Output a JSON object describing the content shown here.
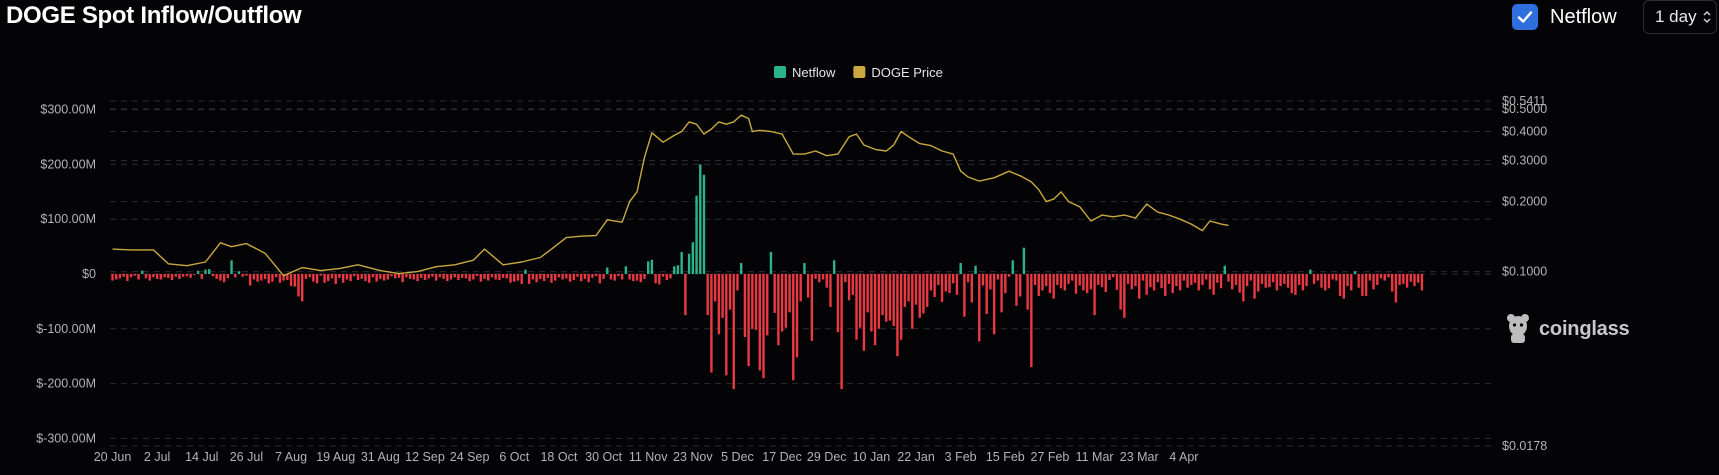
{
  "header": {
    "title": "DOGE Spot Inflow/Outflow",
    "toggle_label": "Netflow",
    "toggle_checked": true,
    "interval_value": "1 day"
  },
  "watermark": "coinglass",
  "colors": {
    "background": "#040406",
    "inflow": "#2bb38a",
    "outflow": "#ea3943",
    "price": "#c9a83f",
    "grid": "#2a2c30",
    "axis_text": "#b3b3b3",
    "checkbox": "#2f6fdd"
  },
  "chart_data": {
    "type": "bar",
    "title": "",
    "legend": {
      "position": "top-center",
      "items": [
        {
          "label": "Netflow",
          "color": "#2bb38a"
        },
        {
          "label": "DOGE Price",
          "color": "#c9a83f"
        }
      ]
    },
    "grid": true,
    "x_tick_labels": [
      "20 Jun",
      "2 Jul",
      "14 Jul",
      "26 Jul",
      "7 Aug",
      "19 Aug",
      "31 Aug",
      "12 Sep",
      "24 Sep",
      "6 Oct",
      "18 Oct",
      "30 Oct",
      "11 Nov",
      "23 Nov",
      "5 Dec",
      "17 Dec",
      "29 Dec",
      "10 Jan",
      "22 Jan",
      "3 Feb",
      "15 Feb",
      "27 Feb",
      "11 Mar",
      "23 Mar",
      "4 Apr"
    ],
    "y_left": {
      "label": "",
      "ylim": [
        -300,
        300
      ],
      "unit": "M USD",
      "tick_values": [
        300,
        200,
        100,
        0,
        -100,
        -200,
        -300
      ],
      "tick_labels": [
        "$300.00M",
        "$200.00M",
        "$100.00M",
        "$0",
        "$-100.00M",
        "$-200.00M",
        "$-300.00M"
      ]
    },
    "y_right": {
      "label": "",
      "scale": "log",
      "tick_values": [
        0.5411,
        0.5,
        0.4,
        0.3,
        0.2,
        0.1,
        0.0178
      ],
      "tick_labels": [
        "$0.5411",
        "$0.5000",
        "$0.4000",
        "$0.3000",
        "$0.2000",
        "$0.1000",
        "$0.0178"
      ]
    },
    "series": [
      {
        "name": "Netflow",
        "type": "bar",
        "unit": "M USD",
        "x_start_day": "20 Jun",
        "x_step_days": 1,
        "values": [
          -12,
          -10,
          -8,
          -5,
          -13,
          -6,
          -3,
          -10,
          6,
          -8,
          -12,
          -6,
          -9,
          -10,
          -6,
          -7,
          -11,
          -5,
          -9,
          -5,
          -4,
          -7,
          -2,
          6,
          -9,
          8,
          9,
          -4,
          -9,
          -12,
          -15,
          -8,
          25,
          -6,
          5,
          -5,
          -3,
          -21,
          -10,
          -14,
          -12,
          -9,
          -17,
          -14,
          -6,
          -16,
          -12,
          -11,
          -22,
          -23,
          -41,
          -50,
          -9,
          -6,
          -14,
          -17,
          -3,
          -16,
          -13,
          -8,
          -18,
          -7,
          -16,
          -10,
          -13,
          -4,
          -11,
          -9,
          -13,
          -16,
          -6,
          -14,
          -9,
          -12,
          -10,
          -4,
          -8,
          -7,
          -15,
          -6,
          -9,
          -10,
          -13,
          -7,
          -11,
          -8,
          -5,
          -12,
          -6,
          -9,
          -13,
          -10,
          -6,
          -11,
          -7,
          -8,
          -13,
          -10,
          -4,
          -14,
          -9,
          -12,
          -6,
          -10,
          -11,
          -7,
          -8,
          -16,
          -14,
          -12,
          -18,
          8,
          -18,
          -10,
          -15,
          -9,
          -13,
          -7,
          -16,
          -12,
          -6,
          -10,
          -8,
          -14,
          -11,
          -5,
          -13,
          -9,
          -15,
          -7,
          -4,
          -17,
          -9,
          12,
          -10,
          -12,
          -4,
          -10,
          14,
          -10,
          -13,
          -12,
          -15,
          -9,
          23,
          26,
          -17,
          -19,
          -5,
          -11,
          -8,
          14,
          16,
          40,
          -75,
          37,
          58,
          143,
          200,
          181,
          -75,
          -180,
          -50,
          -110,
          -80,
          -185,
          -65,
          -210,
          -30,
          20,
          -115,
          -168,
          -100,
          -102,
          -176,
          -190,
          -112,
          40,
          -71,
          -130,
          -105,
          -98,
          -70,
          -194,
          -152,
          -50,
          20,
          -43,
          -122,
          -9,
          -15,
          -10,
          -25,
          -60,
          25,
          -106,
          -210,
          -15,
          -48,
          -38,
          -120,
          -98,
          -140,
          -70,
          -105,
          -130,
          -100,
          -75,
          -87,
          -85,
          -95,
          -150,
          -120,
          -60,
          -50,
          -100,
          -56,
          -80,
          -72,
          -60,
          -30,
          -42,
          -20,
          -51,
          -32,
          -35,
          -17,
          -38,
          20,
          -78,
          -15,
          -52,
          15,
          -123,
          -21,
          -73,
          -28,
          -110,
          -10,
          -70,
          -35,
          -5,
          25,
          -58,
          -41,
          48,
          -65,
          -170,
          -20,
          -40,
          -30,
          -22,
          -35,
          -45,
          -20,
          -26,
          -30,
          -18,
          -12,
          -36,
          -21,
          -30,
          -35,
          -28,
          -75,
          -20,
          -24,
          -33,
          -11,
          -6,
          -29,
          -65,
          -80,
          -18,
          -28,
          -22,
          -45,
          -12,
          -38,
          -24,
          -30,
          -15,
          -26,
          -40,
          -18,
          -35,
          -22,
          -30,
          -12,
          -25,
          -20,
          -16,
          -30,
          -20,
          -10,
          -28,
          -38,
          -16,
          -26,
          15,
          -14,
          -28,
          -20,
          -34,
          -50,
          -22,
          -12,
          -45,
          -32,
          -18,
          -25,
          -24,
          -15,
          -30,
          -22,
          -18,
          -25,
          -35,
          -38,
          -20,
          -30,
          -22,
          8,
          -18,
          -12,
          -25,
          -30,
          -26,
          -10,
          -12,
          -40,
          -45,
          -22,
          -30,
          5,
          -25,
          -40,
          -40,
          -12,
          -28,
          -20,
          -8,
          -12,
          -6,
          -32,
          -52,
          -20,
          -18,
          -25,
          -14,
          -22,
          -16,
          -30
        ]
      },
      {
        "name": "DOGE Price",
        "type": "line",
        "axis": "right",
        "unit": "USD",
        "points": [
          [
            "20 Jun",
            0.125
          ],
          [
            "25 Jun",
            0.124
          ],
          [
            "1 Jul",
            0.124
          ],
          [
            "5 Jul",
            0.108
          ],
          [
            "10 Jul",
            0.106
          ],
          [
            "15 Jul",
            0.11
          ],
          [
            "19 Jul",
            0.133
          ],
          [
            "22 Jul",
            0.128
          ],
          [
            "26 Jul",
            0.132
          ],
          [
            "31 Jul",
            0.12
          ],
          [
            "5 Aug",
            0.096
          ],
          [
            "10 Aug",
            0.104
          ],
          [
            "15 Aug",
            0.101
          ],
          [
            "20 Aug",
            0.103
          ],
          [
            "25 Aug",
            0.107
          ],
          [
            "31 Aug",
            0.101
          ],
          [
            "5 Sep",
            0.098
          ],
          [
            "10 Sep",
            0.1
          ],
          [
            "15 Sep",
            0.105
          ],
          [
            "20 Sep",
            0.107
          ],
          [
            "25 Sep",
            0.112
          ],
          [
            "28 Sep",
            0.125
          ],
          [
            "3 Oct",
            0.107
          ],
          [
            "8 Oct",
            0.11
          ],
          [
            "13 Oct",
            0.115
          ],
          [
            "16 Oct",
            0.125
          ],
          [
            "20 Oct",
            0.14
          ],
          [
            "24 Oct",
            0.142
          ],
          [
            "28 Oct",
            0.143
          ],
          [
            "31 Oct",
            0.167
          ],
          [
            "4 Nov",
            0.163
          ],
          [
            "6 Nov",
            0.2
          ],
          [
            "8 Nov",
            0.22
          ],
          [
            "10 Nov",
            0.31
          ],
          [
            "12 Nov",
            0.395
          ],
          [
            "15 Nov",
            0.36
          ],
          [
            "18 Nov",
            0.385
          ],
          [
            "20 Nov",
            0.4
          ],
          [
            "22 Nov",
            0.44
          ],
          [
            "24 Nov",
            0.43
          ],
          [
            "26 Nov",
            0.39
          ],
          [
            "28 Nov",
            0.41
          ],
          [
            "30 Nov",
            0.44
          ],
          [
            "2 Dec",
            0.43
          ],
          [
            "4 Dec",
            0.44
          ],
          [
            "6 Dec",
            0.47
          ],
          [
            "8 Dec",
            0.455
          ],
          [
            "9 Dec",
            0.4
          ],
          [
            "11 Dec",
            0.405
          ],
          [
            "14 Dec",
            0.4
          ],
          [
            "17 Dec",
            0.39
          ],
          [
            "20 Dec",
            0.32
          ],
          [
            "23 Dec",
            0.32
          ],
          [
            "26 Dec",
            0.33
          ],
          [
            "29 Dec",
            0.315
          ],
          [
            "1 Jan",
            0.32
          ],
          [
            "4 Jan",
            0.38
          ],
          [
            "6 Jan",
            0.39
          ],
          [
            "8 Jan",
            0.35
          ],
          [
            "11 Jan",
            0.335
          ],
          [
            "14 Jan",
            0.33
          ],
          [
            "16 Jan",
            0.35
          ],
          [
            "18 Jan",
            0.4
          ],
          [
            "20 Jan",
            0.38
          ],
          [
            "23 Jan",
            0.355
          ],
          [
            "26 Jan",
            0.348
          ],
          [
            "29 Jan",
            0.33
          ],
          [
            "1 Feb",
            0.32
          ],
          [
            "3 Feb",
            0.27
          ],
          [
            "5 Feb",
            0.255
          ],
          [
            "8 Feb",
            0.245
          ],
          [
            "12 Feb",
            0.253
          ],
          [
            "16 Feb",
            0.27
          ],
          [
            "19 Feb",
            0.258
          ],
          [
            "22 Feb",
            0.243
          ],
          [
            "24 Feb",
            0.225
          ],
          [
            "26 Feb",
            0.2
          ],
          [
            "28 Feb",
            0.205
          ],
          [
            "2 Mar",
            0.22
          ],
          [
            "4 Mar",
            0.2
          ],
          [
            "7 Mar",
            0.19
          ],
          [
            "10 Mar",
            0.165
          ],
          [
            "13 Mar",
            0.175
          ],
          [
            "16 Mar",
            0.172
          ],
          [
            "19 Mar",
            0.175
          ],
          [
            "22 Mar",
            0.17
          ],
          [
            "25 Mar",
            0.195
          ],
          [
            "28 Mar",
            0.18
          ],
          [
            "31 Mar",
            0.175
          ],
          [
            "3 Apr",
            0.168
          ],
          [
            "6 Apr",
            0.16
          ],
          [
            "9 Apr",
            0.15
          ],
          [
            "11 Apr",
            0.165
          ],
          [
            "14 Apr",
            0.16
          ],
          [
            "16 Apr",
            0.158
          ]
        ]
      }
    ]
  }
}
